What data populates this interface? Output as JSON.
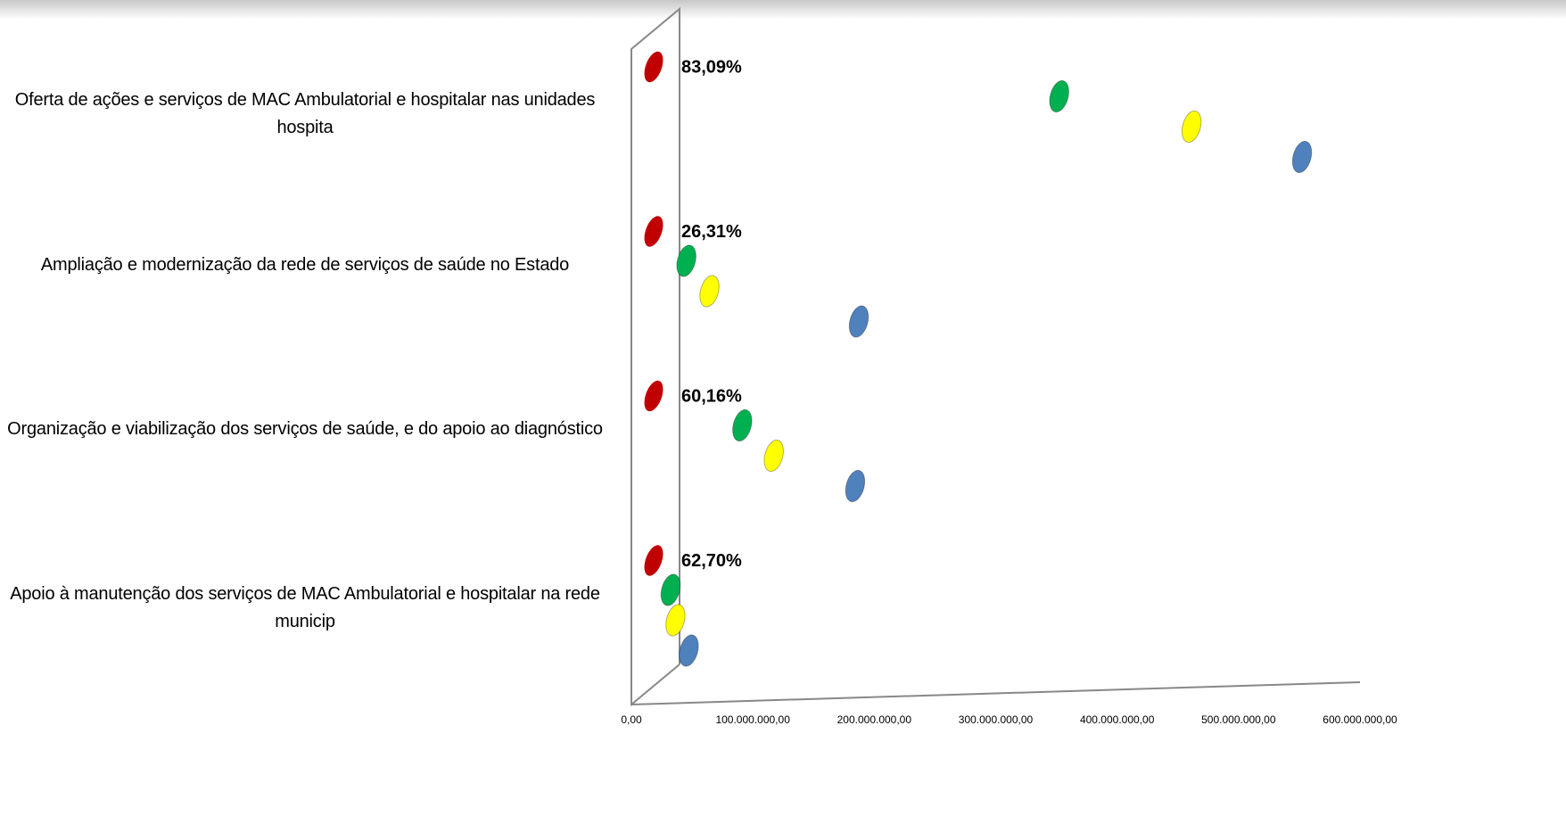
{
  "chart_data": {
    "type": "bar",
    "orientation": "horizontal",
    "categories": [
      "Oferta de ações e serviços de MAC Ambulatorial e hospitalar nas unidades hospita",
      "Ampliação e modernização da rede de serviços de saúde no Estado",
      "Organização e viabilização dos serviços de saúde, e do apoio ao diagnóstico",
      "Apoio à manutenção dos serviços de MAC Ambulatorial e hospitalar na rede municip"
    ],
    "series": [
      {
        "color": "#c00000",
        "values": [
          83.09,
          26.31,
          60.16,
          62.7
        ],
        "value_labels": [
          "83,09%",
          "26,31%",
          "60,16%",
          "62,70%"
        ]
      },
      {
        "color": "#00b050",
        "values": [
          342000000,
          35000000,
          81000000,
          22000000
        ]
      },
      {
        "color": "#ffff00",
        "values": [
          451000000,
          54000000,
          107000000,
          26000000
        ]
      },
      {
        "color": "#4f81bd",
        "values": [
          542000000,
          177000000,
          174000000,
          37000000
        ]
      }
    ],
    "xlim": [
      0,
      600000000
    ],
    "xticks": [
      {
        "value": 0,
        "label": "0,00"
      },
      {
        "value": 100000000,
        "label": "100.000.000,00"
      },
      {
        "value": 200000000,
        "label": "200.000.000,00"
      },
      {
        "value": 300000000,
        "label": "300.000.000,00"
      },
      {
        "value": 400000000,
        "label": "400.000.000,00"
      },
      {
        "value": 500000000,
        "label": "500.000.000,00"
      },
      {
        "value": 600000000,
        "label": "600.000.000,00"
      }
    ]
  }
}
